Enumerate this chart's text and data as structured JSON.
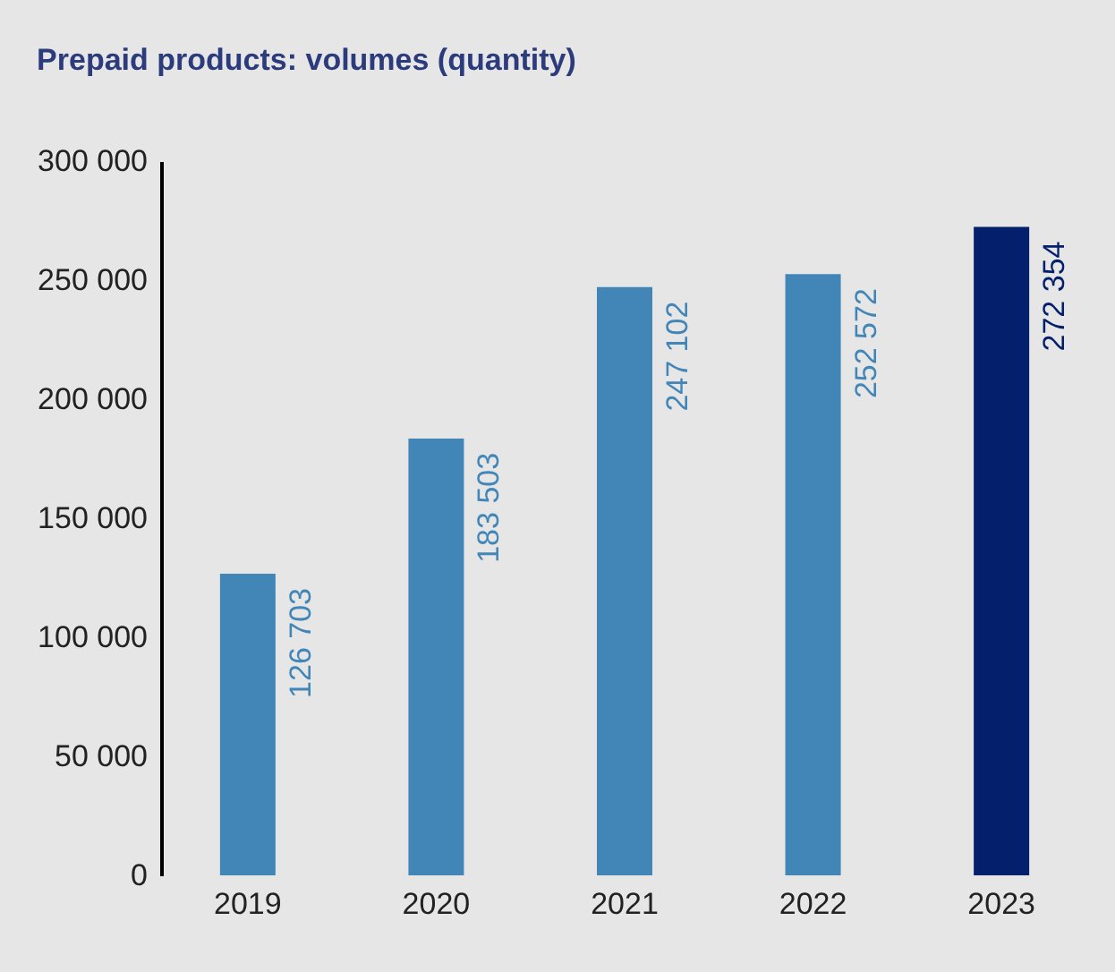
{
  "chart_data": {
    "type": "bar",
    "title": "Prepaid products: volumes (quantity)",
    "categories": [
      "2019",
      "2020",
      "2021",
      "2022",
      "2023"
    ],
    "values": [
      126703,
      183503,
      247102,
      252572,
      272354
    ],
    "colors": [
      "#4286b8",
      "#4286b8",
      "#4286b8",
      "#4286b8",
      "#041f6b"
    ],
    "value_labels": [
      "126 703",
      "183 503",
      "247 102",
      "252 572",
      "272 354"
    ],
    "ylim": [
      0,
      300000
    ],
    "yticks": [
      0,
      {
        "value": 50000,
        "label": "50 000"
      },
      {
        "value": 100000,
        "label": "100 000"
      },
      {
        "value": 150000,
        "label": "150 000"
      },
      {
        "value": 200000,
        "label": "200 000"
      },
      {
        "value": 250000,
        "label": "250 000"
      },
      {
        "value": 300000,
        "label": "300 000"
      }
    ],
    "grid": false
  }
}
